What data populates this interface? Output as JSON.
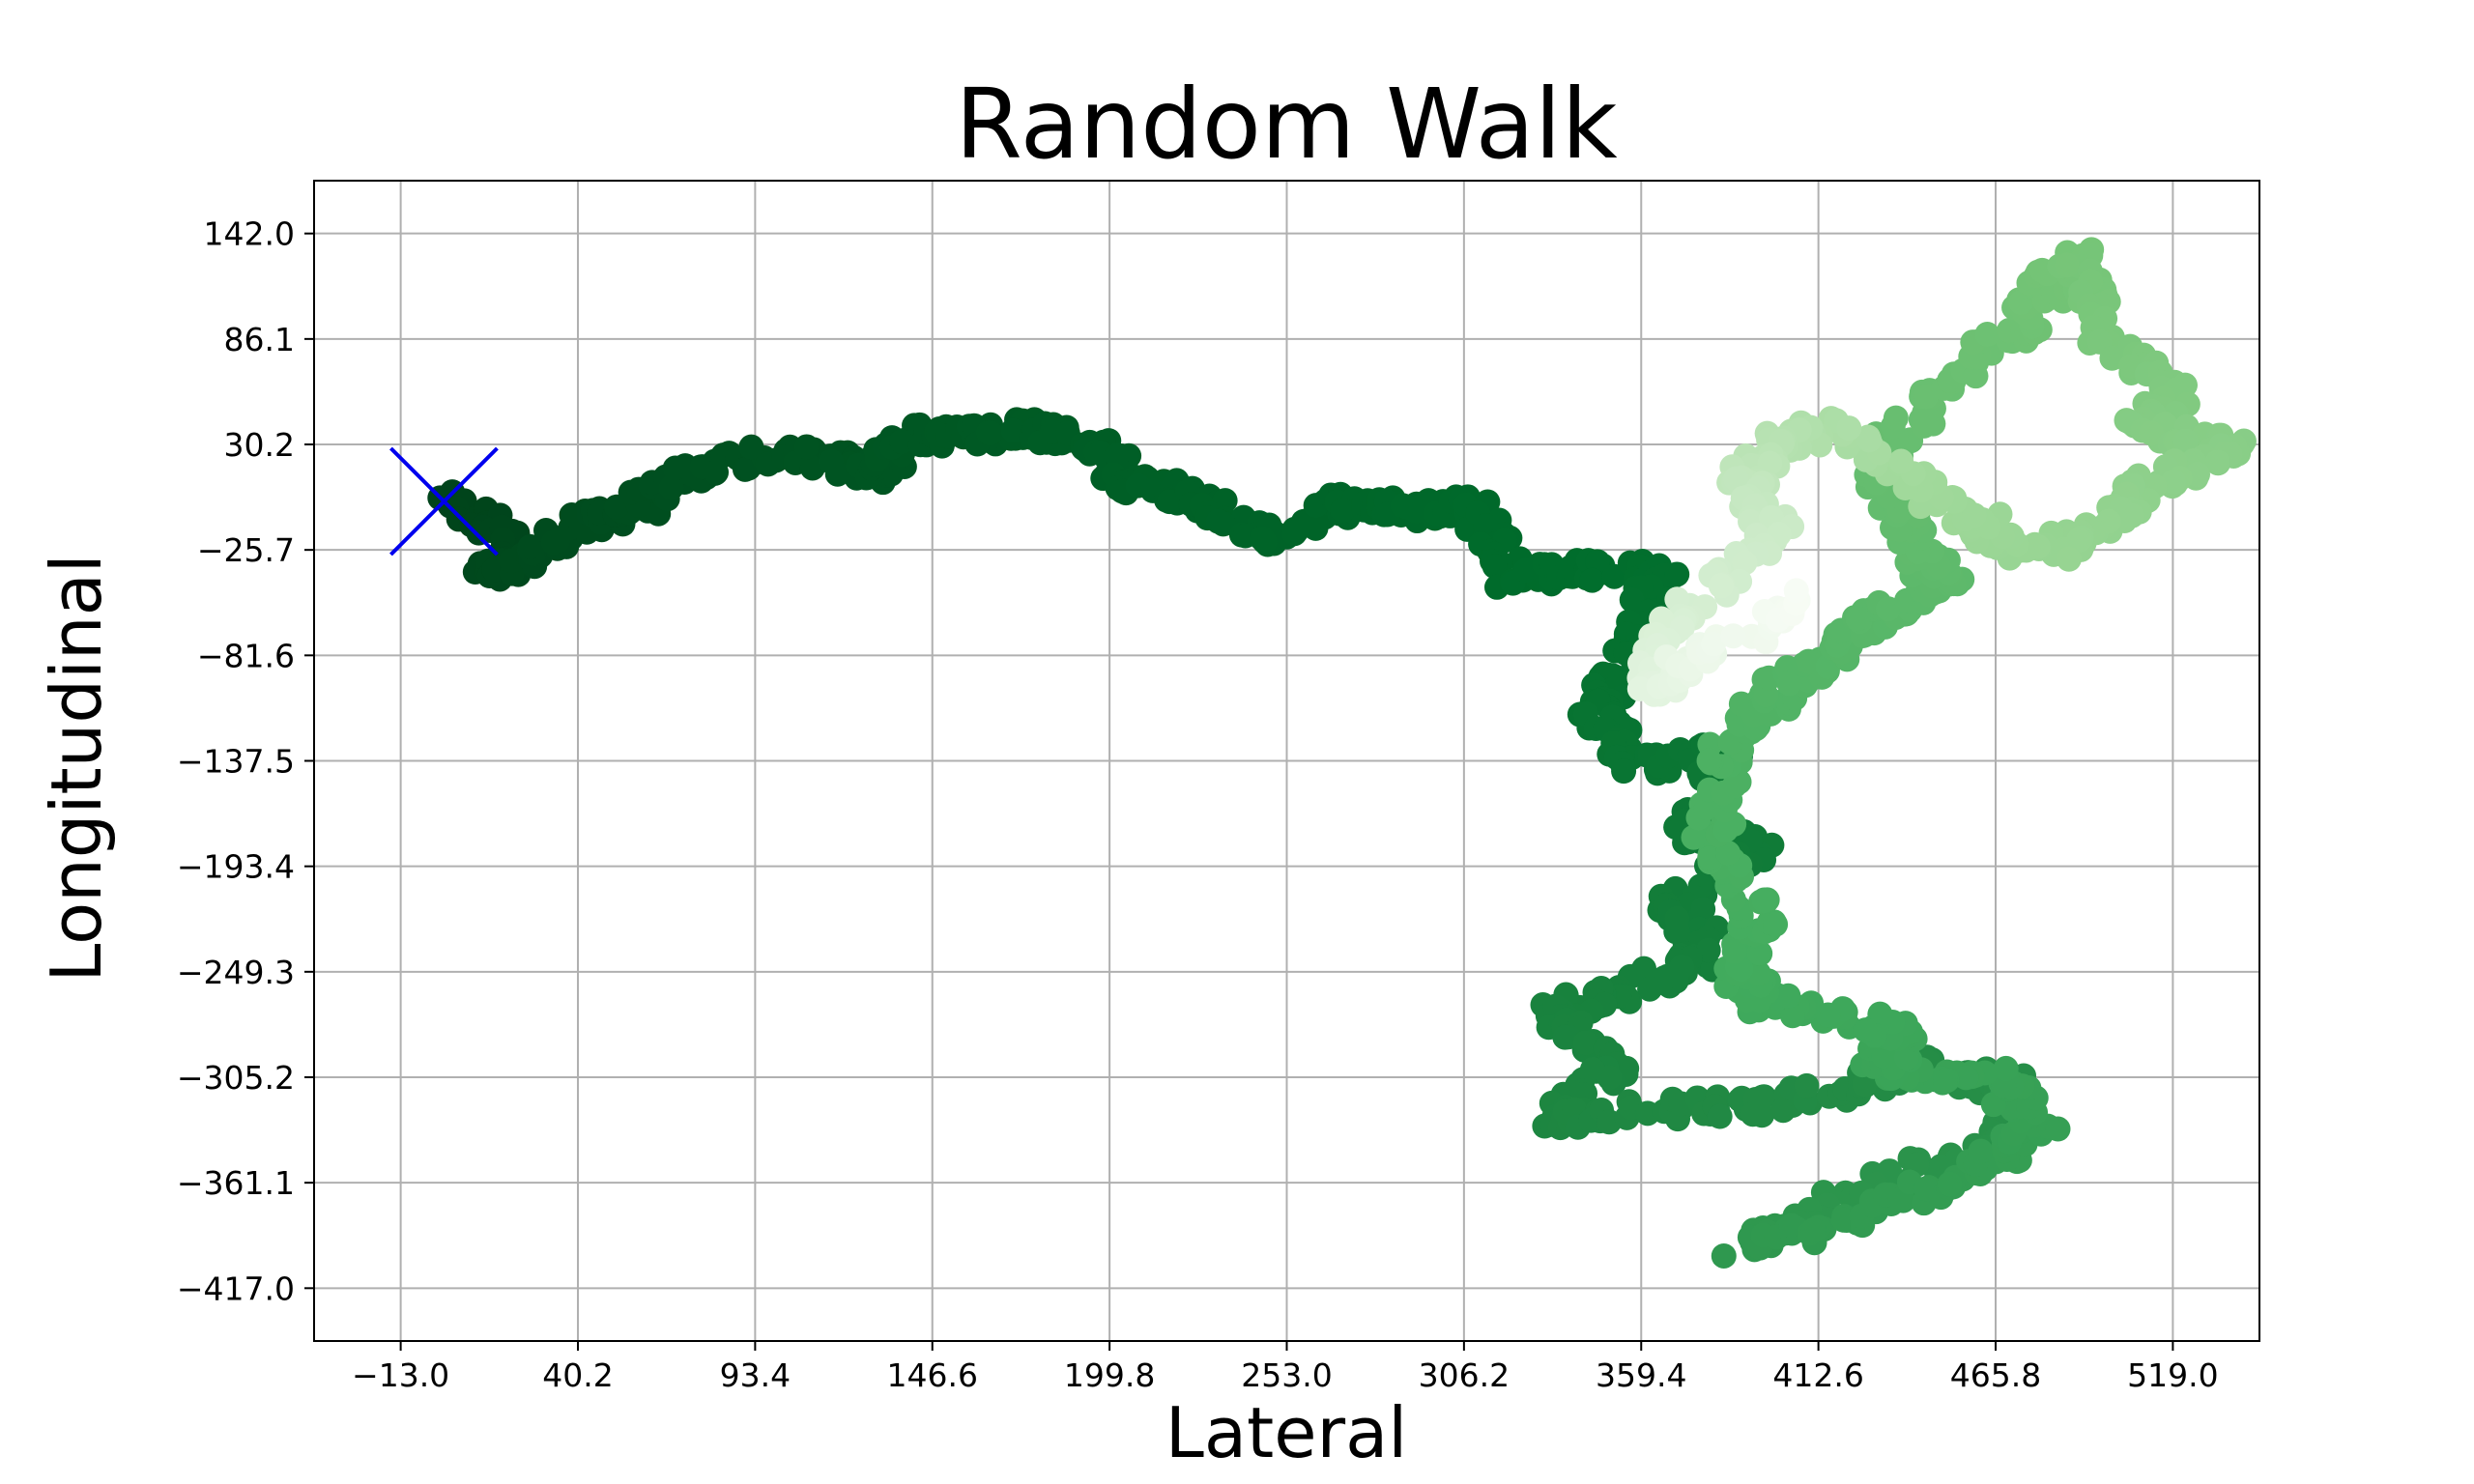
{
  "chart_data": {
    "type": "scatter",
    "title": "Random Walk",
    "xlabel": "Lateral",
    "ylabel": "Longitudinal",
    "x_ticks": [
      "−13.0",
      "40.2",
      "93.4",
      "146.6",
      "199.8",
      "253.0",
      "306.2",
      "359.4",
      "412.6",
      "465.8",
      "519.0"
    ],
    "y_ticks": [
      "142.0",
      "86.1",
      "30.2",
      "−25.7",
      "−81.6",
      "−137.5",
      "−193.4",
      "−249.3",
      "−305.2",
      "−361.1",
      "−417.0"
    ],
    "xlim": [
      -39.0,
      545.0
    ],
    "ylim": [
      -445.0,
      170.0
    ],
    "grid": true,
    "colormap": "Greens (dark at start, light at end)",
    "start_marker": {
      "shape": "x",
      "color": "#0000ee",
      "x": 0,
      "y": 0
    },
    "series": [
      {
        "path_waypoints": [
          [
            0,
            0
          ],
          [
            20,
            -20
          ],
          [
            15,
            -40
          ],
          [
            25,
            -30
          ],
          [
            45,
            -10
          ],
          [
            60,
            0
          ],
          [
            80,
            20
          ],
          [
            110,
            25
          ],
          [
            130,
            15
          ],
          [
            140,
            35
          ],
          [
            160,
            35
          ],
          [
            175,
            40
          ],
          [
            195,
            30
          ],
          [
            205,
            10
          ],
          [
            225,
            0
          ],
          [
            245,
            -20
          ],
          [
            270,
            0
          ],
          [
            290,
            -5
          ],
          [
            310,
            0
          ],
          [
            320,
            -40
          ],
          [
            345,
            -35
          ],
          [
            365,
            -40
          ],
          [
            355,
            -90
          ],
          [
            345,
            -110
          ],
          [
            360,
            -140
          ],
          [
            385,
            -130
          ],
          [
            375,
            -175
          ],
          [
            395,
            -180
          ],
          [
            370,
            -210
          ],
          [
            380,
            -240
          ],
          [
            355,
            -260
          ],
          [
            330,
            -270
          ],
          [
            350,
            -300
          ],
          [
            330,
            -330
          ],
          [
            370,
            -320
          ],
          [
            400,
            -320
          ],
          [
            440,
            -300
          ],
          [
            470,
            -310
          ],
          [
            470,
            -340
          ],
          [
            440,
            -355
          ],
          [
            410,
            -380
          ],
          [
            390,
            -395
          ],
          [
            425,
            -380
          ],
          [
            460,
            -355
          ],
          [
            480,
            -330
          ],
          [
            465,
            -305
          ],
          [
            430,
            -300
          ],
          [
            440,
            -280
          ],
          [
            400,
            -270
          ],
          [
            390,
            -250
          ],
          [
            395,
            -220
          ],
          [
            380,
            -180
          ],
          [
            385,
            -130
          ],
          [
            400,
            -100
          ],
          [
            420,
            -80
          ],
          [
            430,
            -60
          ],
          [
            450,
            -40
          ],
          [
            440,
            -20
          ],
          [
            430,
            20
          ],
          [
            450,
            60
          ],
          [
            470,
            90
          ],
          [
            480,
            110
          ],
          [
            490,
            130
          ],
          [
            500,
            80
          ],
          [
            520,
            60
          ],
          [
            510,
            40
          ],
          [
            540,
            25
          ],
          [
            510,
            10
          ],
          [
            500,
            -10
          ],
          [
            480,
            -30
          ],
          [
            460,
            -10
          ],
          [
            440,
            10
          ],
          [
            420,
            40
          ],
          [
            400,
            30
          ],
          [
            390,
            10
          ],
          [
            400,
            -20
          ],
          [
            370,
            -60
          ],
          [
            360,
            -100
          ],
          [
            380,
            -80
          ],
          [
            410,
            -50
          ]
        ]
      }
    ]
  }
}
